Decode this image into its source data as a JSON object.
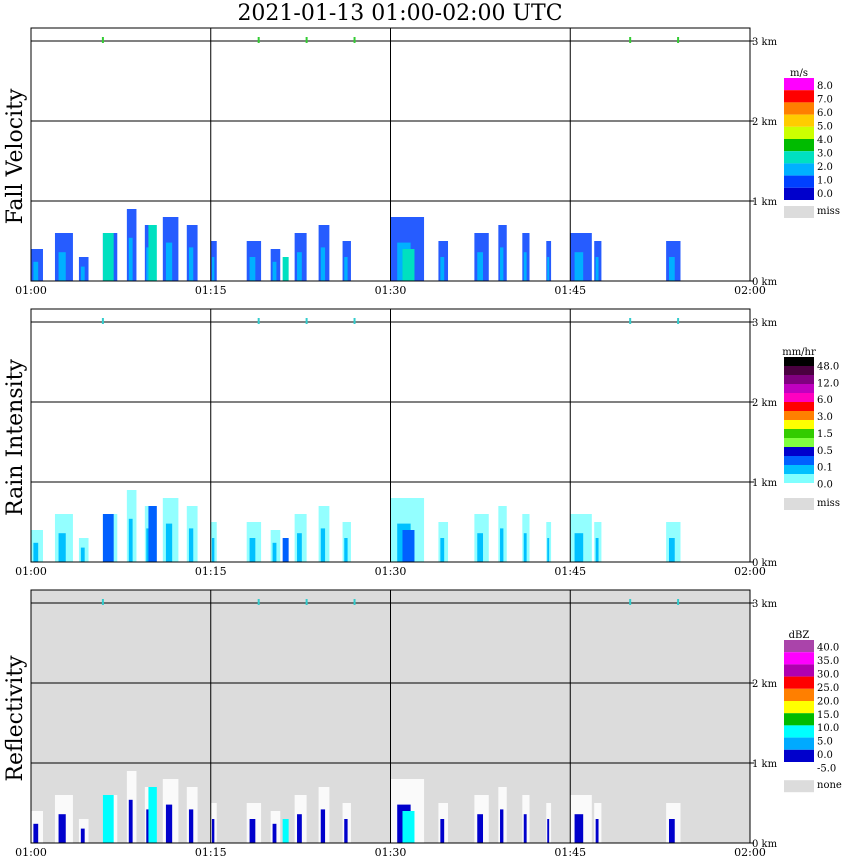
{
  "title": "2021-01-13   01:00-02:00 UTC",
  "colors": {
    "missing": "#dcdcdc",
    "grid": "#000000",
    "marker_green": "#33cc33",
    "marker_cyan": "#33cccc"
  },
  "chart_data": [
    {
      "type": "heatmap",
      "panel": "fall_velocity",
      "ylabel": "Fall Velocity",
      "x_ticks": [
        "01:00",
        "01:15",
        "01:30",
        "01:45",
        "02:00"
      ],
      "y_ticks": [
        "0 km",
        "1 km",
        "2 km",
        "3 km"
      ],
      "xlim": [
        "01:00",
        "02:00"
      ],
      "ylim_km": [
        0,
        3.2
      ],
      "background": "white",
      "marker_color": "#33cc33",
      "top_markers": [
        "01:06",
        "01:19",
        "01:23",
        "01:27",
        "01:50",
        "01:54"
      ],
      "colorbar": {
        "unit": "m/s",
        "labels": [
          "8.0",
          "7.0",
          "6.0",
          "5.0",
          "4.0",
          "3.0",
          "2.0",
          "1.0",
          "0.0"
        ],
        "colors": [
          "#ff00ff",
          "#ff0000",
          "#ff7f00",
          "#ffcc00",
          "#ccff00",
          "#00bb00",
          "#00e0c0",
          "#00b0ff",
          "#0040ff",
          "#0000cc"
        ],
        "miss_label": "miss"
      }
    },
    {
      "type": "heatmap",
      "panel": "rain_intensity",
      "ylabel": "Rain Intensity",
      "x_ticks": [
        "01:00",
        "01:15",
        "01:30",
        "01:45",
        "02:00"
      ],
      "y_ticks": [
        "0 km",
        "1 km",
        "2 km",
        "3 km"
      ],
      "xlim": [
        "01:00",
        "02:00"
      ],
      "ylim_km": [
        0,
        3.2
      ],
      "background": "white",
      "marker_color": "#33cccc",
      "top_markers": [
        "01:06",
        "01:19",
        "01:23",
        "01:27",
        "01:50",
        "01:54"
      ],
      "colorbar": {
        "unit": "mm/hr",
        "labels": [
          "48.0",
          "12.0",
          "6.0",
          "3.0",
          "1.5",
          "0.5",
          "0.1",
          "0.0"
        ],
        "colors": [
          "#000000",
          "#4a0040",
          "#800080",
          "#c000c0",
          "#ff00c0",
          "#ff0000",
          "#ff8000",
          "#ffff00",
          "#33cc00",
          "#80ff40",
          "#0000cc",
          "#0060ff",
          "#00c0ff",
          "#80ffff",
          "#ffffff"
        ],
        "miss_label": "miss"
      }
    },
    {
      "type": "heatmap",
      "panel": "reflectivity",
      "ylabel": "Reflectivity",
      "x_ticks": [
        "01:00",
        "01:15",
        "01:30",
        "01:45",
        "02:00"
      ],
      "y_ticks": [
        "0 km",
        "1 km",
        "2 km",
        "3 km"
      ],
      "xlim": [
        "01:00",
        "02:00"
      ],
      "ylim_km": [
        0,
        3.2
      ],
      "background": "missing",
      "marker_color": "#33cccc",
      "top_markers": [
        "01:06",
        "01:19",
        "01:23",
        "01:27",
        "01:50",
        "01:54"
      ],
      "colorbar": {
        "unit": "dBZ",
        "labels": [
          "40.0",
          "35.0",
          "30.0",
          "25.0",
          "20.0",
          "15.0",
          "10.0",
          "5.0",
          "0.0",
          "-5.0"
        ],
        "colors": [
          "#aa44aa",
          "#ff00ff",
          "#b000b0",
          "#ff0000",
          "#ff7f00",
          "#ffff00",
          "#00bb00",
          "#00ffff",
          "#00aaff",
          "#0000cc",
          "#ffffff"
        ],
        "miss_label": "none"
      }
    }
  ]
}
